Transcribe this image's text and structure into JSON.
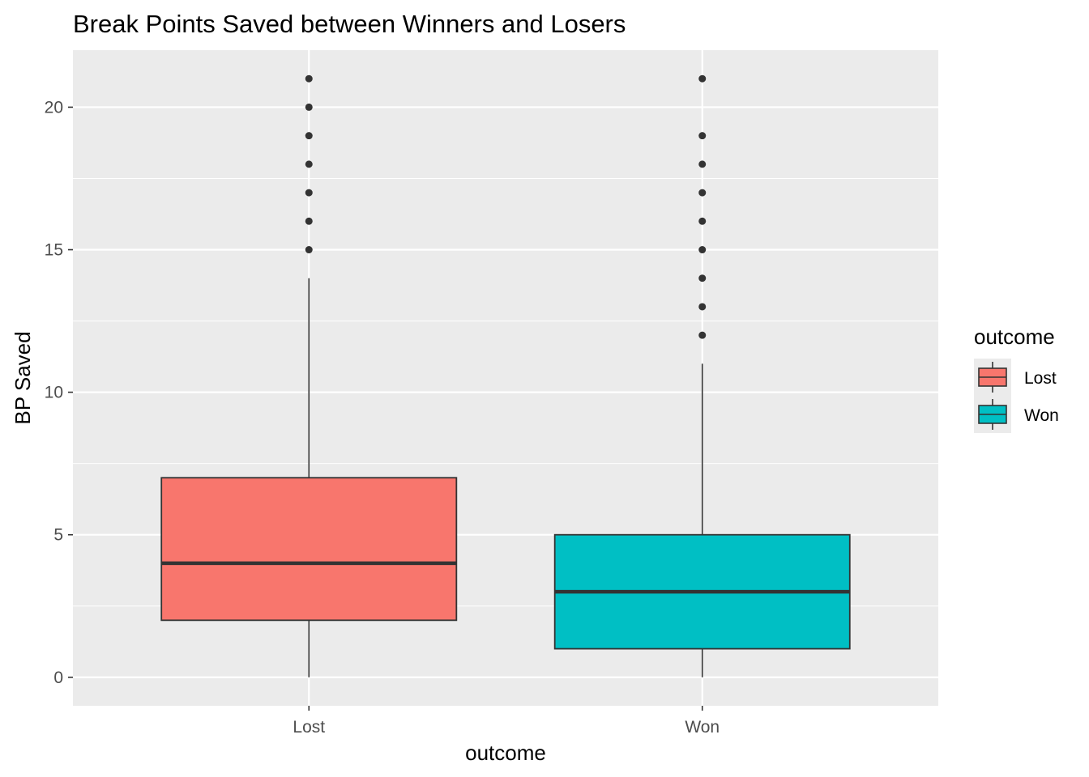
{
  "chart_data": {
    "type": "boxplot",
    "title": "Break Points Saved between Winners and Losers",
    "xlabel": "outcome",
    "ylabel": "BP Saved",
    "categories": [
      "Lost",
      "Won"
    ],
    "ylim": [
      -1,
      22
    ],
    "yticks": [
      0,
      5,
      10,
      15,
      20
    ],
    "grid": true,
    "legend": {
      "title": "outcome",
      "position": "right",
      "entries": [
        "Lost",
        "Won"
      ]
    },
    "series": [
      {
        "category": "Lost",
        "min": 0,
        "q1": 2,
        "median": 4,
        "q3": 7,
        "max": 14,
        "outliers": [
          15,
          16,
          17,
          18,
          19,
          20,
          21
        ],
        "color": "#F8766D"
      },
      {
        "category": "Won",
        "min": 0,
        "q1": 1,
        "median": 3,
        "q3": 5,
        "max": 11,
        "outliers": [
          12,
          13,
          14,
          15,
          16,
          17,
          18,
          19,
          21
        ],
        "color": "#00BFC4"
      }
    ],
    "colors": {
      "panel": "#EBEBEB",
      "grid": "#FFFFFF",
      "outline": "#333333"
    }
  }
}
